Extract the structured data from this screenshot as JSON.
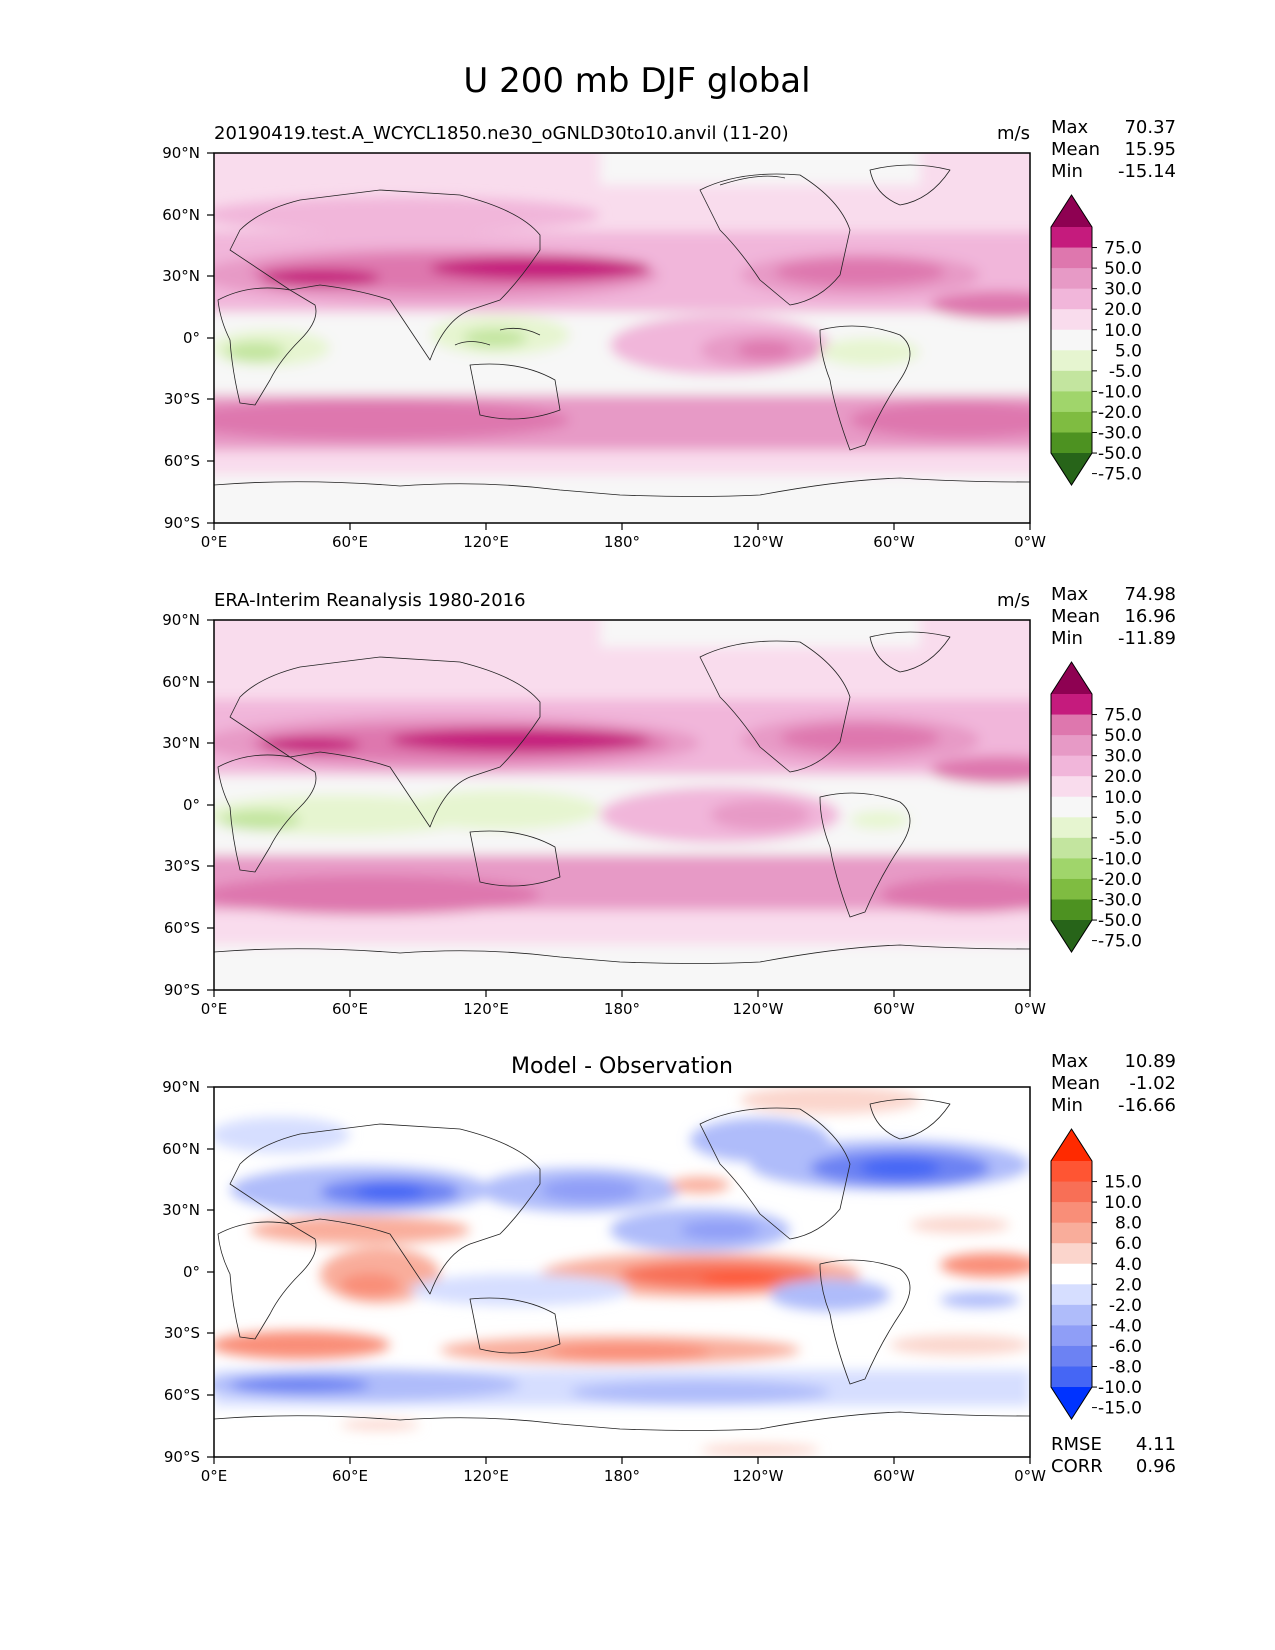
{
  "figure_title": "U 200 mb DJF global",
  "lat_ticks": [
    "90°N",
    "60°N",
    "30°N",
    "0°",
    "30°S",
    "60°S",
    "90°S"
  ],
  "lon_ticks": [
    "0°E",
    "60°E",
    "120°E",
    "180°",
    "120°W",
    "60°W",
    "0°W"
  ],
  "stat_labels": {
    "max": "Max",
    "mean": "Mean",
    "min": "Min",
    "rmse": "RMSE",
    "corr": "CORR"
  },
  "scales": {
    "wind": {
      "levels": [
        "75.0",
        "50.0",
        "30.0",
        "20.0",
        "10.0",
        "5.0",
        "-5.0",
        "-10.0",
        "-20.0",
        "-30.0",
        "-50.0",
        "-75.0"
      ],
      "colors": [
        "#8e0152",
        "#c51b7d",
        "#de77ae",
        "#e79ac6",
        "#f1b6da",
        "#f9dced",
        "#f7f7f7",
        "#e6f5d0",
        "#c3e59f",
        "#a0d56b",
        "#7fbc41",
        "#4d9221",
        "#276419"
      ]
    },
    "diff": {
      "levels": [
        "15.0",
        "10.0",
        "8.0",
        "6.0",
        "4.0",
        "2.0",
        "-2.0",
        "-4.0",
        "-6.0",
        "-8.0",
        "-10.0",
        "-15.0"
      ],
      "colors": [
        "#ff2a00",
        "#ff5533",
        "#f86f56",
        "#f98e78",
        "#f9ad9b",
        "#fbd5cc",
        "#ffffff",
        "#d6deff",
        "#afbcfa",
        "#8f9ef7",
        "#6c82f3",
        "#4566f5",
        "#0033ff"
      ]
    }
  },
  "panels": [
    {
      "title_left": "20190419.test.A_WCYCL1850.ne30_oGNLD30to10.anvil (11-20)",
      "title_center": "",
      "units": "m/s",
      "scale": "wind",
      "stats": {
        "max": "70.37",
        "mean": "15.95",
        "min": "-15.14"
      }
    },
    {
      "title_left": "ERA-Interim Reanalysis 1980-2016",
      "title_center": "",
      "units": "m/s",
      "scale": "wind",
      "stats": {
        "max": "74.98",
        "mean": "16.96",
        "min": "-11.89"
      }
    },
    {
      "title_left": "",
      "title_center": "Model - Observation",
      "units": "",
      "scale": "diff",
      "stats": {
        "max": "10.89",
        "mean": "-1.02",
        "min": "-16.66"
      },
      "rmse": "4.11",
      "corr": "0.96"
    }
  ],
  "chart_data": [
    {
      "type": "heatmap",
      "title": "20190419.test.A_WCYCL1850.ne30_oGNLD30to10.anvil (11-20)",
      "variable": "U 200 mb DJF",
      "units": "m/s",
      "x": "longitude 0°E to 360° (0°W)",
      "y": "latitude 90°S to 90°N",
      "colorbar_levels": [
        -75,
        -50,
        -30,
        -20,
        -10,
        -5,
        5,
        10,
        20,
        30,
        50,
        75
      ],
      "features": [
        {
          "lon": 155,
          "lat": 32,
          "value": 55,
          "desc": "subtropical jet core over Japan / NW Pacific"
        },
        {
          "lon": 60,
          "lat": 27,
          "value": 52,
          "desc": "jet over Middle East / Asia"
        },
        {
          "lon": 290,
          "lat": 33,
          "value": 45,
          "desc": "jet over eastern North America"
        },
        {
          "lon": 340,
          "lat": 20,
          "value": 35,
          "desc": "jet over North Africa / Atlantic"
        },
        {
          "lon": 240,
          "lat": -8,
          "value": 38,
          "desc": "equatorial eastern Pacific westerlies"
        },
        {
          "lon": 60,
          "lat": -48,
          "value": 40,
          "desc": "Southern Hemisphere jet (Indian Ocean)"
        },
        {
          "lon": 330,
          "lat": -45,
          "value": 40,
          "desc": "Southern Hemisphere jet (South Atlantic)"
        },
        {
          "lon": 125,
          "lat": -2,
          "value": -12,
          "desc": "easterlies over Maritime Continent"
        },
        {
          "lon": 30,
          "lat": -8,
          "value": -12,
          "desc": "easterlies over central Africa"
        },
        {
          "lon": 305,
          "lat": -5,
          "value": -8,
          "desc": "easterlies over South America"
        }
      ]
    },
    {
      "type": "heatmap",
      "title": "ERA-Interim Reanalysis 1980-2016",
      "variable": "U 200 mb DJF",
      "units": "m/s",
      "colorbar_levels": [
        -75,
        -50,
        -30,
        -20,
        -10,
        -5,
        5,
        10,
        20,
        30,
        50,
        75
      ],
      "features": [
        {
          "lon": 150,
          "lat": 30,
          "value": 58,
          "desc": "subtropical jet core over Japan / NW Pacific"
        },
        {
          "lon": 55,
          "lat": 27,
          "value": 52,
          "desc": "jet over Middle East / Asia"
        },
        {
          "lon": 285,
          "lat": 35,
          "value": 45,
          "desc": "jet over eastern North America"
        },
        {
          "lon": 345,
          "lat": 18,
          "value": 38,
          "desc": "jet over North Africa / Atlantic"
        },
        {
          "lon": 50,
          "lat": -45,
          "value": 42,
          "desc": "Southern Hemisphere jet (Indian Ocean)"
        },
        {
          "lon": 340,
          "lat": -45,
          "value": 42,
          "desc": "Southern Hemisphere jet (South Atlantic)"
        },
        {
          "lon": 130,
          "lat": 0,
          "value": -10,
          "desc": "easterlies over Maritime Continent"
        },
        {
          "lon": 30,
          "lat": -5,
          "value": -10,
          "desc": "easterlies over central Africa"
        }
      ]
    },
    {
      "type": "heatmap",
      "title": "Model - Observation",
      "variable": "U 200 mb DJF difference",
      "units": "m/s",
      "colorbar_levels": [
        -15,
        -10,
        -8,
        -6,
        -4,
        -2,
        2,
        4,
        6,
        8,
        10,
        15
      ],
      "rmse": 4.11,
      "corr": 0.96,
      "features": [
        {
          "lon": 295,
          "lat": 45,
          "value": -12,
          "desc": "negative bias over eastern North America / NW Atlantic"
        },
        {
          "lon": 70,
          "lat": 38,
          "value": -10,
          "desc": "negative bias over Central Asia"
        },
        {
          "lon": 135,
          "lat": 38,
          "value": -8,
          "desc": "negative bias over East Asia"
        },
        {
          "lon": 205,
          "lat": 15,
          "value": -8,
          "desc": "negative bias over central Pacific"
        },
        {
          "lon": 245,
          "lat": -8,
          "value": 12,
          "desc": "positive bias over equatorial eastern Pacific"
        },
        {
          "lon": 60,
          "lat": -5,
          "value": 6,
          "desc": "positive bias over western Indian Ocean"
        },
        {
          "lon": 40,
          "lat": -42,
          "value": 6,
          "desc": "positive bias south of Africa"
        },
        {
          "lon": 200,
          "lat": -45,
          "value": 6,
          "desc": "positive bias over South Pacific"
        },
        {
          "lon": 60,
          "lat": -58,
          "value": -8,
          "desc": "negative bias over Southern Ocean"
        },
        {
          "lon": 350,
          "lat": -5,
          "value": 6,
          "desc": "positive bias over tropical Atlantic"
        },
        {
          "lon": 270,
          "lat": 75,
          "value": 4,
          "desc": "positive bias over Canadian Arctic"
        }
      ]
    }
  ]
}
